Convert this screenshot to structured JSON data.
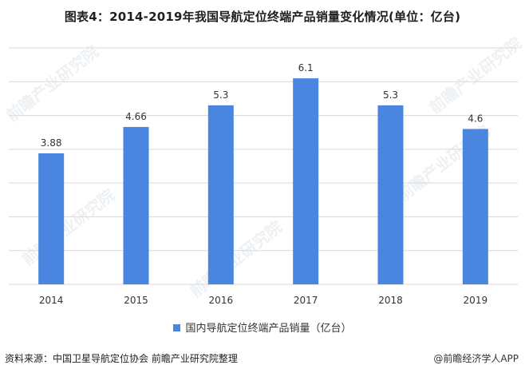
{
  "title": "图表4：2014-2019年我国导航定位终端产品销量变化情况(单位：亿台)",
  "source": "资料来源：中国卫星导航定位协会 前瞻产业研究院整理",
  "brand": "@前瞻经济学人APP",
  "watermark": "前瞻产业研究院",
  "colors": {
    "bar": "#4a86e0",
    "grid": "#d9d9d9"
  },
  "chart_data": {
    "type": "bar",
    "categories": [
      "2014",
      "2015",
      "2016",
      "2017",
      "2018",
      "2019"
    ],
    "series": [
      {
        "name": "国内导航定位终端产品销量（亿台）",
        "values": [
          3.88,
          4.66,
          5.3,
          6.1,
          5.3,
          4.6
        ]
      }
    ],
    "data_labels": [
      "3.88",
      "4.66",
      "5.3",
      "6.1",
      "5.3",
      "4.6"
    ],
    "ylim": [
      0,
      7
    ],
    "grid": true,
    "legend": "bottom"
  }
}
